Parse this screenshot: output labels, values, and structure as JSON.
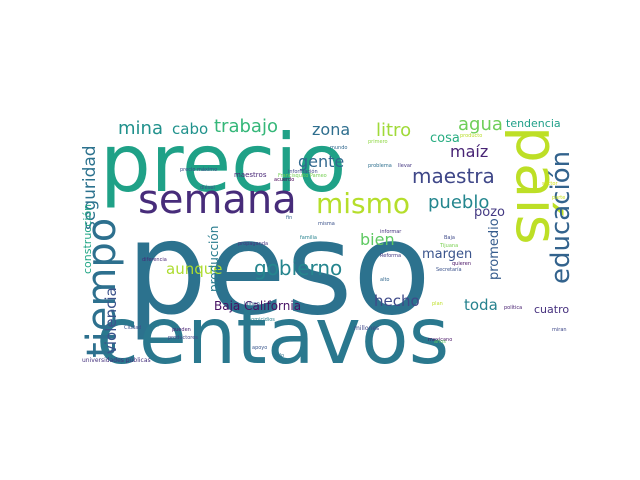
{
  "words": [
    {
      "key": "peso",
      "text": "peso",
      "color": "#2c728e"
    },
    {
      "key": "centavos",
      "text": "centavos",
      "color": "#2a788e"
    },
    {
      "key": "precio",
      "text": "precio",
      "color": "#1fa187"
    },
    {
      "key": "pais",
      "text": "país",
      "color": "#bddf26"
    },
    {
      "key": "semana",
      "text": "semana",
      "color": "#472c7a"
    },
    {
      "key": "tiempo",
      "text": "tiempo",
      "color": "#2d708e"
    },
    {
      "key": "educacion",
      "text": "educación",
      "color": "#33638d"
    },
    {
      "key": "mismo",
      "text": "mismo",
      "color": "#b5de2b"
    },
    {
      "key": "gobierno",
      "text": "gobierno",
      "color": "#25858e"
    },
    {
      "key": "seguridad",
      "text": "seguridad",
      "color": "#2c728e"
    },
    {
      "key": "maestra",
      "text": "maestra",
      "color": "#3f4788"
    },
    {
      "key": "mina",
      "text": "mina",
      "color": "#21918c"
    },
    {
      "key": "trabajo",
      "text": "trabajo",
      "color": "#35b779"
    },
    {
      "key": "agua",
      "text": "agua",
      "color": "#6ece58"
    },
    {
      "key": "litro",
      "text": "litro",
      "color": "#a0da39"
    },
    {
      "key": "gente",
      "text": "gente",
      "color": "#31688e"
    },
    {
      "key": "zona",
      "text": "zona",
      "color": "#2e6e8e"
    },
    {
      "key": "maiz",
      "text": "maíz",
      "color": "#482475"
    },
    {
      "key": "cabo",
      "text": "cabo",
      "color": "#20928c"
    },
    {
      "key": "pueblo",
      "text": "pueblo",
      "color": "#24868e"
    },
    {
      "key": "violencia",
      "text": "violencia",
      "color": "#3b528b"
    },
    {
      "key": "bien",
      "text": "bien",
      "color": "#5ec962"
    },
    {
      "key": "hecho",
      "text": "hecho",
      "color": "#3e4a89"
    },
    {
      "key": "promedio",
      "text": "promedio",
      "color": "#365c8d"
    },
    {
      "key": "aunque",
      "text": "aunque",
      "color": "#addc30"
    },
    {
      "key": "toda",
      "text": "toda",
      "color": "#26828e"
    },
    {
      "key": "pozo",
      "text": "pozo",
      "color": "#443a83"
    },
    {
      "key": "margen",
      "text": "margen",
      "color": "#3a548c"
    },
    {
      "key": "cosa",
      "text": "cosa",
      "color": "#27ad81"
    },
    {
      "key": "tendencia",
      "text": "tendencia",
      "color": "#1f9f88"
    },
    {
      "key": "construccion",
      "text": "construcción",
      "color": "#21a685"
    },
    {
      "key": "produccion",
      "text": "producción",
      "color": "#287c8e"
    },
    {
      "key": "baja_california",
      "text": "Baja California",
      "color": "#471164"
    },
    {
      "key": "cuatro",
      "text": "cuatro",
      "color": "#46307e"
    },
    {
      "key": "universidades_publicas",
      "text": "universidades públicas",
      "color": "#46327e"
    },
    {
      "key": "maestros",
      "text": "maestros",
      "color": "#482677"
    },
    {
      "key": "precio_maximo",
      "text": "precio máximo",
      "color": "#3e4989"
    },
    {
      "key": "diesel",
      "text": "diésel",
      "color": "#3b518b"
    },
    {
      "key": "acuerdo",
      "text": "acuerdo",
      "color": "#440154"
    },
    {
      "key": "francisquito_pameo",
      "text": "Francisquito Pameo",
      "color": "#75d054"
    },
    {
      "key": "mundo",
      "text": "mundo",
      "color": "#31688e"
    },
    {
      "key": "informacion",
      "text": "información",
      "color": "#3e4989"
    },
    {
      "key": "homicidios",
      "text": "homicidios",
      "color": "#277f8e"
    },
    {
      "key": "familia",
      "text": "familia",
      "color": "#26828e"
    },
    {
      "key": "propaganda",
      "text": "propaganda",
      "color": "#453882"
    },
    {
      "key": "diferencia",
      "text": "diferencia",
      "color": "#482878"
    },
    {
      "key": "seguir",
      "text": "seguir",
      "color": "#2a778e"
    },
    {
      "key": "cuidad",
      "text": "Ciudad",
      "color": "#3b528b"
    },
    {
      "key": "apoyo",
      "text": "apoyo",
      "color": "#39568c"
    },
    {
      "key": "millones",
      "text": "millones",
      "color": "#3f4788"
    },
    {
      "key": "mexicano",
      "text": "mexicano",
      "color": "#471365"
    },
    {
      "key": "fin",
      "text": "fin",
      "color": "#32648e"
    },
    {
      "key": "llevar",
      "text": "llevar",
      "color": "#453882"
    },
    {
      "key": "informar",
      "text": "informar",
      "color": "#46327e"
    },
    {
      "key": "reforma",
      "text": "Reforma",
      "color": "#443983"
    },
    {
      "key": "secretaria",
      "text": "Secretaría",
      "color": "#3b528b"
    },
    {
      "key": "alto",
      "text": "alto",
      "color": "#31688e"
    },
    {
      "key": "jalisco",
      "text": "Jalisco",
      "color": "#33638d"
    },
    {
      "key": "pueden",
      "text": "pueden",
      "color": "#482173"
    },
    {
      "key": "productores",
      "text": "productores",
      "color": "#404688"
    },
    {
      "key": "solo",
      "text": "sólo",
      "color": "#2c728e"
    },
    {
      "key": "problema",
      "text": "problema",
      "color": "#2e6f8e"
    },
    {
      "key": "producto",
      "text": "producto",
      "color": "#b8de29"
    },
    {
      "key": "primero",
      "text": "primero",
      "color": "#8fd744"
    },
    {
      "key": "politica",
      "text": "política",
      "color": "#482071"
    },
    {
      "key": "pueblo_small",
      "text": "quieren",
      "color": "#471063"
    },
    {
      "key": "baja_small",
      "text": "Baja",
      "color": "#3e4989"
    },
    {
      "key": "tijuana",
      "text": "Tijuana",
      "color": "#7ad151"
    },
    {
      "key": "sector",
      "text": "sector",
      "color": "#d2e21b"
    },
    {
      "key": "parte",
      "text": "parte",
      "color": "#c8e020"
    },
    {
      "key": "dinero",
      "text": "dinero",
      "color": "#d8e219"
    },
    {
      "key": "plan",
      "text": "plan",
      "color": "#bddf26"
    },
    {
      "key": "anos",
      "text": "años",
      "color": "#5cc863"
    },
    {
      "key": "ninos",
      "text": "niños",
      "color": "#a5db36"
    },
    {
      "key": "manera",
      "text": "manera",
      "color": "#b0dd2f"
    },
    {
      "key": "misma",
      "text": "misma",
      "color": "#3b528b"
    },
    {
      "key": "durante",
      "text": "durante",
      "color": "#bddf26"
    },
    {
      "key": "costo",
      "text": "costo",
      "color": "#a8db34"
    },
    {
      "key": "tenemos",
      "text": "tenemos",
      "color": "#c5e021"
    },
    {
      "key": "temporal",
      "text": "temporal",
      "color": "#9dd93b"
    },
    {
      "key": "maestra_small",
      "text": "maestra bañad",
      "color": "#482576"
    },
    {
      "key": "miran",
      "text": "miran",
      "color": "#3f4889"
    },
    {
      "key": "ganancia",
      "text": "ganancia",
      "color": "#addc30"
    },
    {
      "key": "vertical_small",
      "text": "ramificaciones",
      "color": "#c2df23"
    }
  ]
}
